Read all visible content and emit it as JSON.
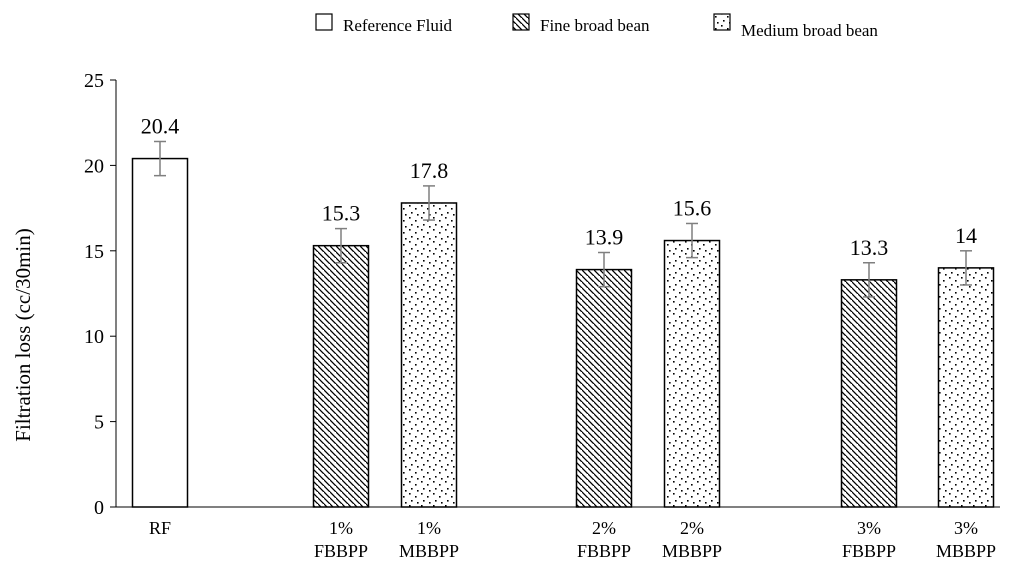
{
  "chart_data": {
    "type": "bar",
    "title": "",
    "xlabel": "",
    "ylabel": "Filtration loss (cc/30min)",
    "ylim": [
      0,
      25
    ],
    "yticks": [
      0,
      5,
      10,
      15,
      20,
      25
    ],
    "grid": false,
    "legend_position": "top",
    "legend": [
      {
        "name": "Reference Fluid",
        "pattern": "blank"
      },
      {
        "name": "Fine broad bean",
        "pattern": "diagonal-hatch"
      },
      {
        "name": "Medium broad bean",
        "pattern": "dots"
      }
    ],
    "categories": [
      {
        "lines": [
          "RF"
        ],
        "series": "Reference Fluid",
        "value": 20.4,
        "label": "20.4",
        "error": 1.0
      },
      {
        "lines": [
          "1%",
          "FBBPP"
        ],
        "series": "Fine broad bean",
        "value": 15.3,
        "label": "15.3",
        "error": 1.0
      },
      {
        "lines": [
          "1%",
          "MBBPP"
        ],
        "series": "Medium broad bean",
        "value": 17.8,
        "label": "17.8",
        "error": 1.0
      },
      {
        "lines": [
          "2%",
          "FBBPP"
        ],
        "series": "Fine broad bean",
        "value": 13.9,
        "label": "13.9",
        "error": 1.0
      },
      {
        "lines": [
          "2%",
          "MBBPP"
        ],
        "series": "Medium broad bean",
        "value": 15.6,
        "label": "15.6",
        "error": 1.0
      },
      {
        "lines": [
          "3%",
          "FBBPP"
        ],
        "series": "Fine broad bean",
        "value": 13.3,
        "label": "13.3",
        "error": 1.0
      },
      {
        "lines": [
          "3%",
          "MBBPP"
        ],
        "series": "Medium broad bean",
        "value": 14,
        "label": "14",
        "error": 1.0
      }
    ],
    "colors": {
      "bar_fill": "#ffffff",
      "bar_stroke": "#000000",
      "error_bar": "#7f7f7f",
      "axis": "#000000"
    }
  }
}
